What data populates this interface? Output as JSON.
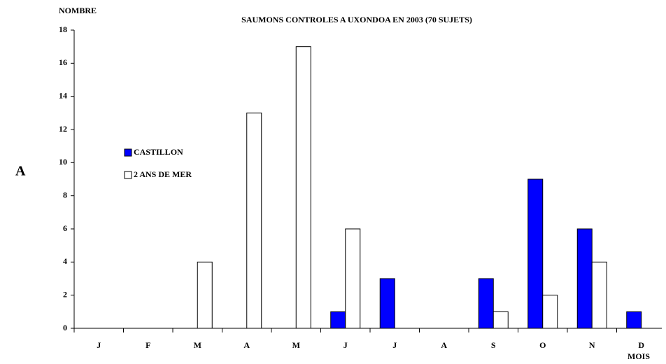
{
  "chart_data": {
    "type": "bar",
    "title": "SAUMONS CONTROLES A UXONDOA EN 2003 (70  SUJETS)",
    "y_label": "NOMBRE",
    "x_label": "MOIS",
    "annotation": "A",
    "categories": [
      "J",
      "F",
      "M",
      "A",
      "M",
      "J",
      "J",
      "A",
      "S",
      "O",
      "N",
      "D"
    ],
    "series": [
      {
        "name": "CASTILLON",
        "color": "#0000ff",
        "values": [
          0,
          0,
          0,
          0,
          0,
          1,
          3,
          0,
          3,
          9,
          6,
          1
        ]
      },
      {
        "name": "2 ANS DE MER",
        "color": "#ffffff",
        "values": [
          0,
          0,
          4,
          13,
          17,
          6,
          0,
          0,
          1,
          2,
          4,
          0
        ]
      }
    ],
    "ylim": [
      0,
      18
    ],
    "yticks": [
      0,
      2,
      4,
      6,
      8,
      10,
      12,
      14,
      16,
      18
    ],
    "grid": false
  }
}
